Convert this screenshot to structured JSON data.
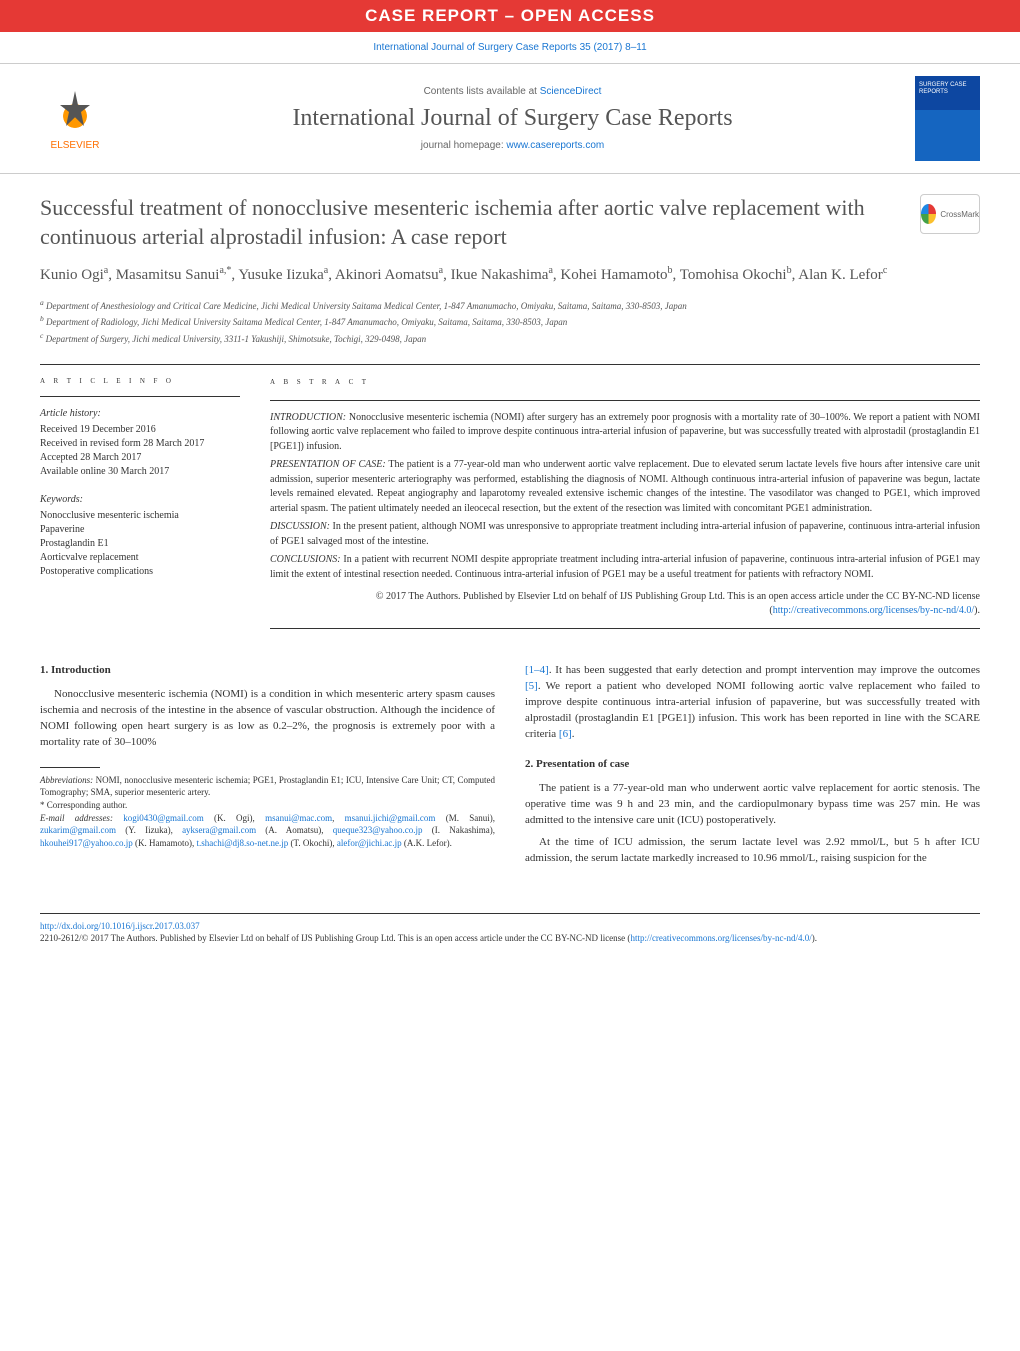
{
  "banner": {
    "text": "CASE REPORT – OPEN ACCESS",
    "bg": "#e53935",
    "color": "#ffffff"
  },
  "citation": "International Journal of Surgery Case Reports 35 (2017) 8–11",
  "header": {
    "contents_prefix": "Contents lists available at ",
    "contents_link": "ScienceDirect",
    "journal": "International Journal of Surgery Case Reports",
    "homepage_prefix": "journal homepage: ",
    "homepage_link": "www.casereports.com",
    "publisher": "ELSEVIER"
  },
  "title": "Successful treatment of nonocclusive mesenteric ischemia after aortic valve replacement with continuous arterial alprostadil infusion: A case report",
  "crossmark": "CrossMark",
  "authors_html": "Kunio Ogi<sup>a</sup>, Masamitsu Sanui<sup>a,*</sup>, Yusuke Iizuka<sup>a</sup>, Akinori Aomatsu<sup>a</sup>, Ikue Nakashima<sup>a</sup>, Kohei Hamamoto<sup>b</sup>, Tomohisa Okochi<sup>b</sup>, Alan K. Lefor<sup>c</sup>",
  "affiliations": [
    "a Department of Anesthesiology and Critical Care Medicine, Jichi Medical University Saitama Medical Center, 1-847 Amanumacho, Omiyaku, Saitama, Saitama, 330-8503, Japan",
    "b Department of Radiology, Jichi Medical University Saitama Medical Center, 1-847 Amanumacho, Omiyaku, Saitama, Saitama, 330-8503, Japan",
    "c Department of Surgery, Jichi medical University, 3311-1 Yakushiji, Shimotsuke, Tochigi, 329-0498, Japan"
  ],
  "info": {
    "label": "A R T I C L E    I N F O",
    "history_heading": "Article history:",
    "history": [
      "Received 19 December 2016",
      "Received in revised form 28 March 2017",
      "Accepted 28 March 2017",
      "Available online 30 March 2017"
    ],
    "keywords_heading": "Keywords:",
    "keywords": [
      "Nonocclusive mesenteric ischemia",
      "Papaverine",
      "Prostaglandin E1",
      "Aorticvalve replacement",
      "Postoperative complications"
    ]
  },
  "abstract": {
    "label": "A B S T R A C T",
    "paras": [
      {
        "lead": "INTRODUCTION:",
        "text": " Nonocclusive mesenteric ischemia (NOMI) after surgery has an extremely poor prognosis with a mortality rate of 30–100%. We report a patient with NOMI following aortic valve replacement who failed to improve despite continuous intra-arterial infusion of papaverine, but was successfully treated with alprostadil (prostaglandin E1 [PGE1]) infusion."
      },
      {
        "lead": "PRESENTATION OF CASE:",
        "text": " The patient is a 77-year-old man who underwent aortic valve replacement. Due to elevated serum lactate levels five hours after intensive care unit admission, superior mesenteric arteriography was performed, establishing the diagnosis of NOMI. Although continuous intra-arterial infusion of papaverine was begun, lactate levels remained elevated. Repeat angiography and laparotomy revealed extensive ischemic changes of the intestine. The vasodilator was changed to PGE1, which improved arterial spasm. The patient ultimately needed an ileocecal resection, but the extent of the resection was limited with concomitant PGE1 administration."
      },
      {
        "lead": "DISCUSSION:",
        "text": " In the present patient, although NOMI was unresponsive to appropriate treatment including intra-arterial infusion of papaverine, continuous intra-arterial infusion of PGE1 salvaged most of the intestine."
      },
      {
        "lead": "CONCLUSIONS:",
        "text": " In a patient with recurrent NOMI despite appropriate treatment including intra-arterial infusion of papaverine, continuous intra-arterial infusion of PGE1 may limit the extent of intestinal resection needed. Continuous intra-arterial infusion of PGE1 may be a useful treatment for patients with refractory NOMI."
      }
    ],
    "copyright": "© 2017 The Authors. Published by Elsevier Ltd on behalf of IJS Publishing Group Ltd. This is an open access article under the CC BY-NC-ND license (",
    "copyright_link": "http://creativecommons.org/licenses/by-nc-nd/4.0/",
    "copyright_suffix": ")."
  },
  "body": {
    "col1": {
      "h1": "1. Introduction",
      "p1": "Nonocclusive mesenteric ischemia (NOMI) is a condition in which mesenteric artery spasm causes ischemia and necrosis of the intestine in the absence of vascular obstruction. Although the incidence of NOMI following open heart surgery is as low as 0.2–2%, the prognosis is extremely poor with a mortality rate of 30–100%",
      "footnotes": {
        "abbrev_lead": "Abbreviations:",
        "abbrev": " NOMI, nonocclusive mesenteric ischemia; PGE1, Prostaglandin E1; ICU, Intensive Care Unit; CT, Computed Tomography; SMA, superior mesenteric artery.",
        "corr": "* Corresponding author.",
        "email_lead": "E-mail addresses:",
        "emails": " kogi0430@gmail.com (K. Ogi), msanui@mac.com, msanui.jichi@gmail.com (M. Sanui), zukarim@gmail.com (Y. Iizuka), ayksera@gmail.com (A. Aomatsu), queque323@yahoo.co.jp (I. Nakashima), hkouhei917@yahoo.co.jp (K. Hamamoto), t.shachi@dj8.so-net.ne.jp (T. Okochi), alefor@jichi.ac.jp (A.K. Lefor)."
      }
    },
    "col2": {
      "p1_refs": "[1–4]",
      "p1": ". It has been suggested that early detection and prompt intervention may improve the outcomes ",
      "p1_ref2": "[5]",
      "p1_cont": ". We report a patient who developed NOMI following aortic valve replacement who failed to improve despite continuous intra-arterial infusion of papaverine, but was successfully treated with alprostadil (prostaglandin E1 [PGE1]) infusion. This work has been reported in line with the SCARE criteria ",
      "p1_ref3": "[6]",
      "p1_end": ".",
      "h2": "2. Presentation of case",
      "p2": "The patient is a 77-year-old man who underwent aortic valve replacement for aortic stenosis. The operative time was 9 h and 23 min, and the cardiopulmonary bypass time was 257 min. He was admitted to the intensive care unit (ICU) postoperatively.",
      "p3": "At the time of ICU admission, the serum lactate level was 2.92 mmol/L, but 5 h after ICU admission, the serum lactate markedly increased to 10.96 mmol/L, raising suspicion for the"
    }
  },
  "footer": {
    "doi": "http://dx.doi.org/10.1016/j.ijscr.2017.03.037",
    "line": "2210-2612/© 2017 The Authors. Published by Elsevier Ltd on behalf of IJS Publishing Group Ltd. This is an open access article under the CC BY-NC-ND license (",
    "link": "http://creativecommons.org/licenses/by-nc-nd/4.0/",
    "suffix": ")."
  }
}
